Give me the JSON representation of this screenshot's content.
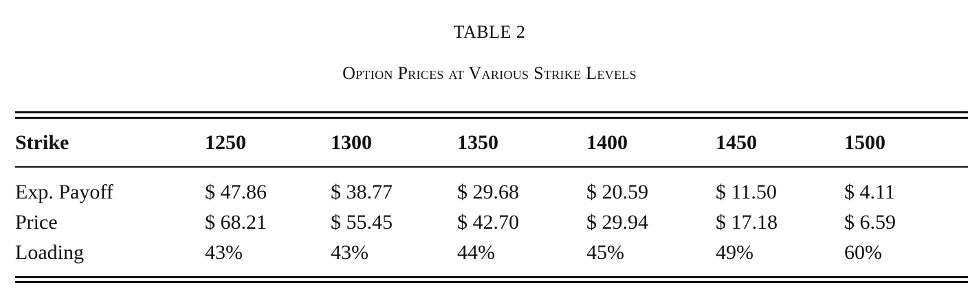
{
  "table": {
    "number": "TABLE 2",
    "caption": "Option Prices at Various Strike Levels",
    "header": [
      "Strike",
      "1250",
      "1300",
      "1350",
      "1400",
      "1450",
      "1500"
    ],
    "rows": [
      [
        "Exp. Payoff",
        "$ 47.86",
        "$ 38.77",
        "$ 29.68",
        "$ 20.59",
        "$ 11.50",
        "$ 4.11"
      ],
      [
        "Price",
        "$ 68.21",
        "$ 55.45",
        "$ 42.70",
        "$ 29.94",
        "$ 17.18",
        "$ 6.59"
      ],
      [
        "Loading",
        "43%",
        "43%",
        "44%",
        "45%",
        "49%",
        "60%"
      ]
    ]
  }
}
